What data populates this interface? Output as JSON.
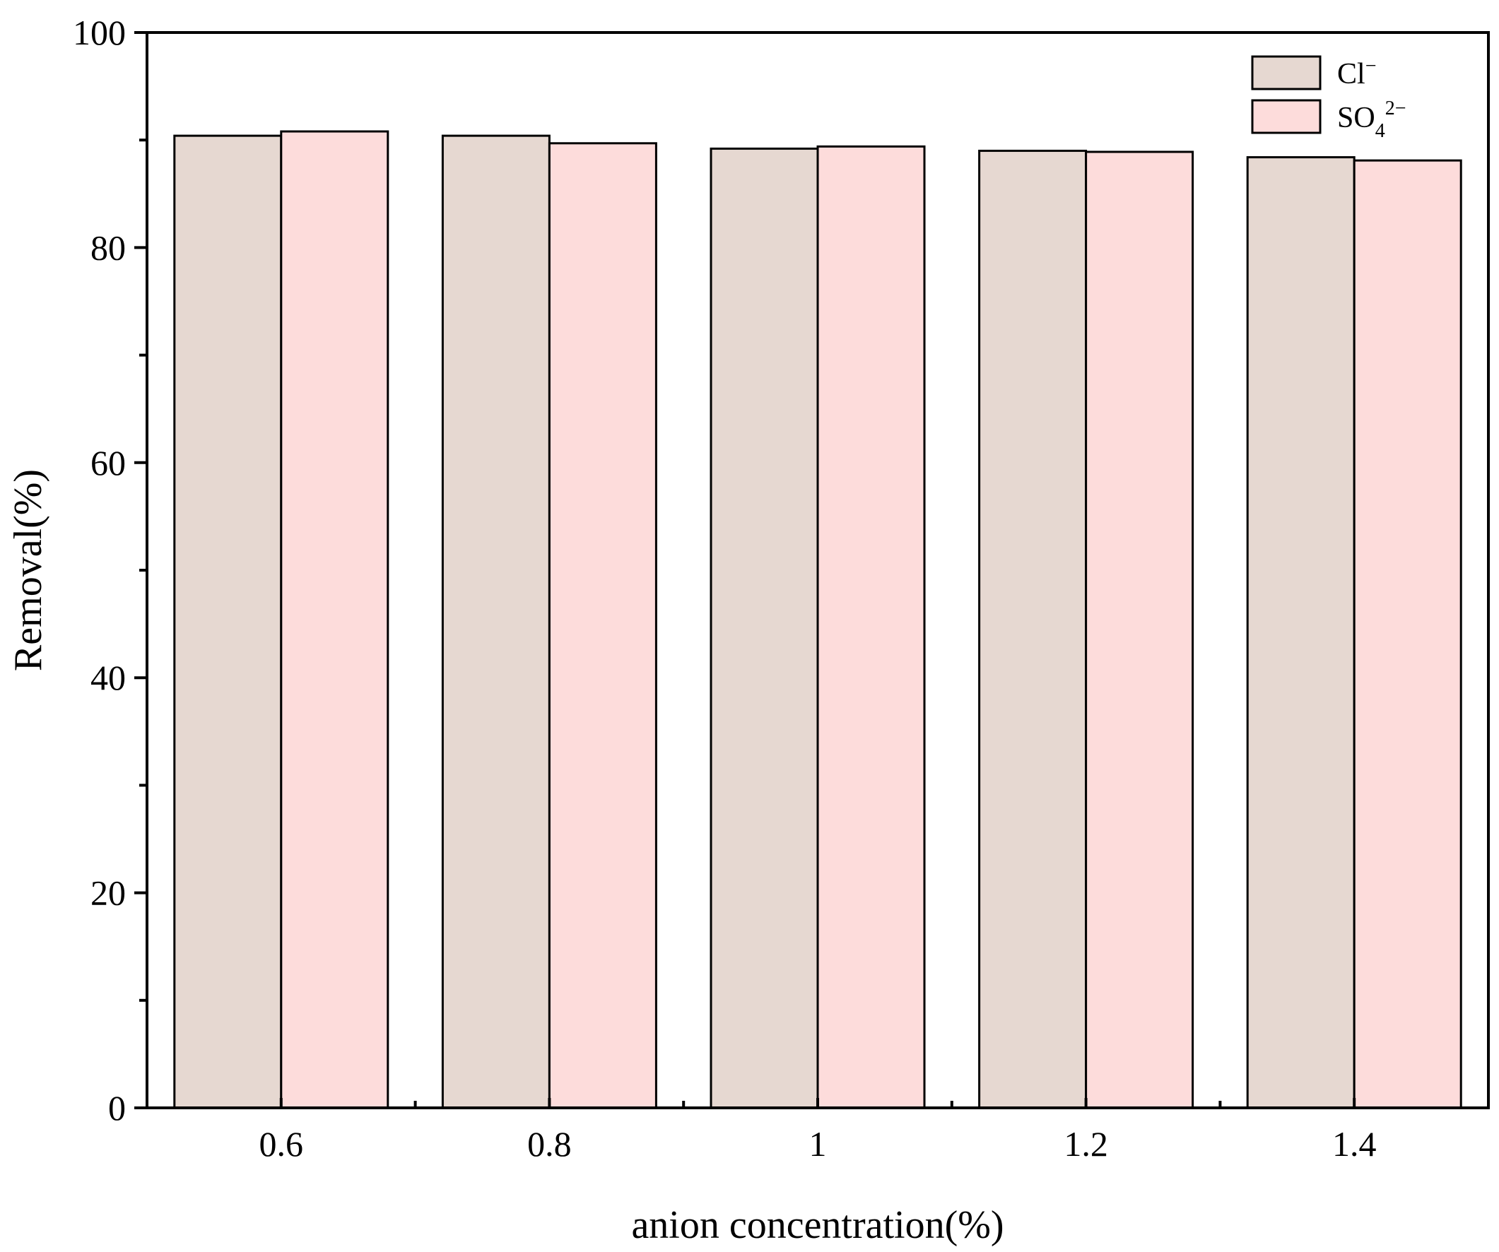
{
  "chart_data": {
    "type": "bar",
    "categories": [
      "0.6",
      "0.8",
      "1",
      "1.2",
      "1.4"
    ],
    "series": [
      {
        "name": "Cl⁻",
        "color": "#e6d8d1",
        "values": [
          90.4,
          90.4,
          89.2,
          89.0,
          88.4
        ]
      },
      {
        "name": "SO₄²⁻",
        "color": "#fddcdb",
        "values": [
          90.8,
          89.7,
          89.4,
          88.9,
          88.1
        ]
      }
    ],
    "title": "",
    "xlabel": "anion concentration(%)",
    "ylabel": "Removal(%)",
    "ylim": [
      0,
      100
    ],
    "yticks": [
      "0",
      "20",
      "40",
      "60",
      "80",
      "100"
    ],
    "grid": false,
    "legend_position": "top-right",
    "legend": [
      {
        "label": "Cl",
        "sup": "−"
      },
      {
        "label": "SO",
        "sub": "4",
        "sup": "2−"
      }
    ],
    "edge_color": "#000000"
  }
}
